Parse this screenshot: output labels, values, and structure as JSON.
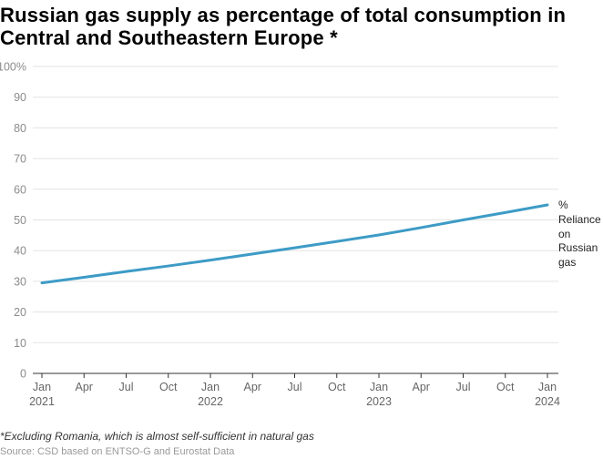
{
  "chart_data": {
    "type": "line",
    "title": "Russian gas supply as percentage of total consumption in Central and Southeastern Europe *",
    "ylim": [
      0,
      100
    ],
    "y_ticks": [
      0,
      10,
      20,
      30,
      40,
      50,
      60,
      70,
      80,
      90,
      100
    ],
    "y_tick_labels": [
      "0",
      "10",
      "20",
      "30",
      "40",
      "50",
      "60",
      "70",
      "80",
      "90",
      "100%"
    ],
    "x_ticks": [
      {
        "month": "Jan",
        "year": "2021"
      },
      {
        "month": "Apr"
      },
      {
        "month": "Jul"
      },
      {
        "month": "Oct"
      },
      {
        "month": "Jan",
        "year": "2022"
      },
      {
        "month": "Apr"
      },
      {
        "month": "Jul"
      },
      {
        "month": "Oct"
      },
      {
        "month": "Jan",
        "year": "2023"
      },
      {
        "month": "Apr"
      },
      {
        "month": "Jul"
      },
      {
        "month": "Oct"
      },
      {
        "month": "Jan",
        "year": "2024"
      }
    ],
    "grid": true,
    "series": [
      {
        "name": "% Reliance on Russian gas",
        "color": "#3d9bc6",
        "values": [
          29.5,
          31.3,
          33.2,
          35.0,
          36.9,
          38.9,
          40.9,
          43.0,
          45.1,
          47.5,
          50.0,
          52.4,
          54.9
        ]
      }
    ]
  },
  "footnote": "*Excluding Romania, which is almost self-sufficient in natural gas",
  "source": "Source: CSD based on ENTSO-G and Eurostat Data"
}
